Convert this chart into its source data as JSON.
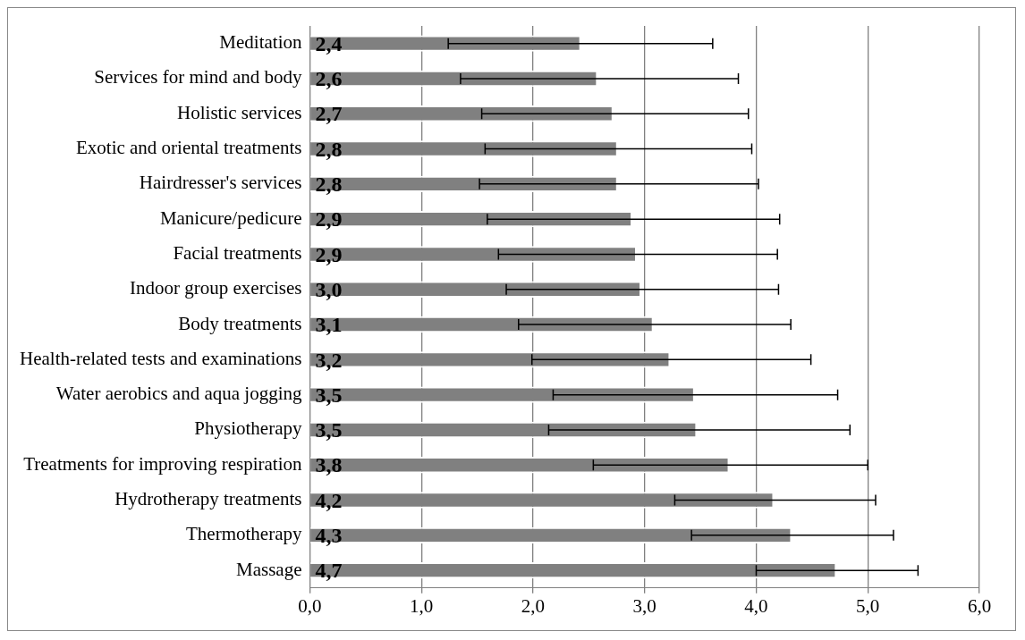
{
  "chart_data": {
    "type": "bar",
    "orientation": "horizontal",
    "categories": [
      "Meditation",
      "Services for mind and body",
      "Holistic services",
      "Exotic and oriental treatments",
      "Hairdresser's services",
      "Manicure/pedicure",
      "Facial treatments",
      "Indoor group exercises",
      "Body treatments",
      "Health-related tests and examinations",
      "Water aerobics and aqua jogging",
      "Physiotherapy",
      "Treatments for improving respiration",
      "Hydrotherapy treatments",
      "Thermotherapy",
      "Massage"
    ],
    "values": [
      2.43,
      2.58,
      2.72,
      2.76,
      2.76,
      2.89,
      2.93,
      2.97,
      3.08,
      3.23,
      3.45,
      3.47,
      3.76,
      4.16,
      4.32,
      4.72
    ],
    "value_labels": [
      "2,4",
      "2,6",
      "2,7",
      "2,8",
      "2,8",
      "2,9",
      "2,9",
      "3,0",
      "3,1",
      "3,2",
      "3,5",
      "3,5",
      "3,8",
      "4,2",
      "4,3",
      "4,7"
    ],
    "errors": [
      [
        1.24,
        3.61
      ],
      [
        1.35,
        3.84
      ],
      [
        1.54,
        3.93
      ],
      [
        1.57,
        3.96
      ],
      [
        1.52,
        4.02
      ],
      [
        1.59,
        4.21
      ],
      [
        1.69,
        4.19
      ],
      [
        1.76,
        4.2
      ],
      [
        1.87,
        4.31
      ],
      [
        1.99,
        4.49
      ],
      [
        2.18,
        4.73
      ],
      [
        2.14,
        4.84
      ],
      [
        2.54,
        5.0
      ],
      [
        3.27,
        5.07
      ],
      [
        3.42,
        5.23
      ],
      [
        4.0,
        5.45
      ]
    ],
    "color": "#808080",
    "xlim": [
      0,
      6
    ],
    "xticks": [
      {
        "value": 0,
        "label": "0,0"
      },
      {
        "value": 1,
        "label": "1,0"
      },
      {
        "value": 2,
        "label": "2,0"
      },
      {
        "value": 3,
        "label": "3,0"
      },
      {
        "value": 4,
        "label": "4,0"
      },
      {
        "value": 5,
        "label": "5,0"
      },
      {
        "value": 6,
        "label": "6,0"
      }
    ],
    "grid": "x",
    "legend": false
  }
}
